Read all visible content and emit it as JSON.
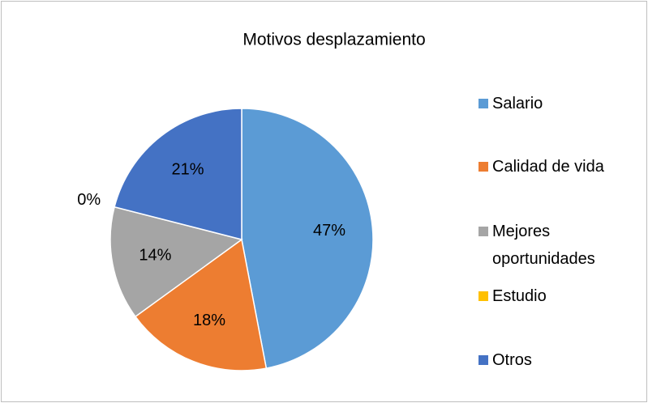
{
  "chart_data": {
    "type": "pie",
    "title": "Motivos desplazamiento",
    "categories": [
      "Salario",
      "Calidad de vida",
      "Mejores oportunidades",
      "Estudio",
      "Otros"
    ],
    "values": [
      47,
      18,
      14,
      0,
      21
    ],
    "value_labels": [
      "47%",
      "18%",
      "14%",
      "0%",
      "21%"
    ],
    "colors": [
      "#5b9bd5",
      "#ed7d31",
      "#a5a5a5",
      "#ffc000",
      "#4472c4"
    ],
    "legend": "right"
  }
}
